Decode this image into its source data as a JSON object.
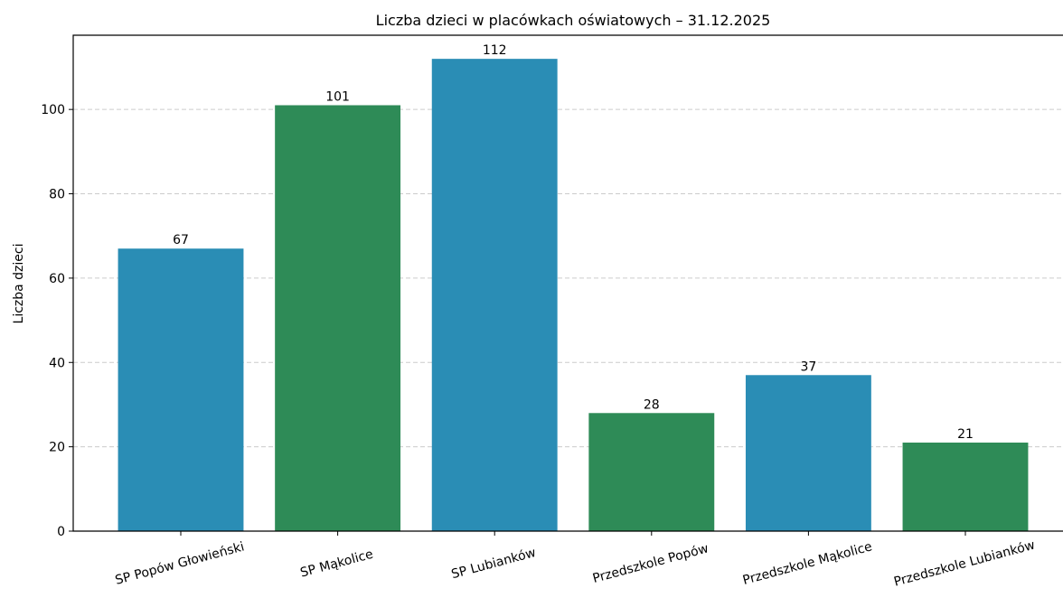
{
  "chart_data": {
    "type": "bar",
    "title": "Liczba dzieci w placówkach oświatowych – 31.12.2025",
    "y_label": "Liczba dzieci",
    "categories": [
      "SP Popów Głowieński",
      "SP Mąkolice",
      "SP Lubianków",
      "Przedszkole Popów",
      "Przedszkole Mąkolice",
      "Przedszkole Lubianków"
    ],
    "values": [
      67,
      101,
      112,
      28,
      37,
      21
    ],
    "colors": [
      "#2a8db5",
      "#2e8b57",
      "#2a8db5",
      "#2e8b57",
      "#2a8db5",
      "#2e8b57"
    ],
    "ylim": [
      0,
      117.6
    ],
    "yticks": [
      0,
      20,
      40,
      60,
      80,
      100
    ],
    "grid": true
  }
}
